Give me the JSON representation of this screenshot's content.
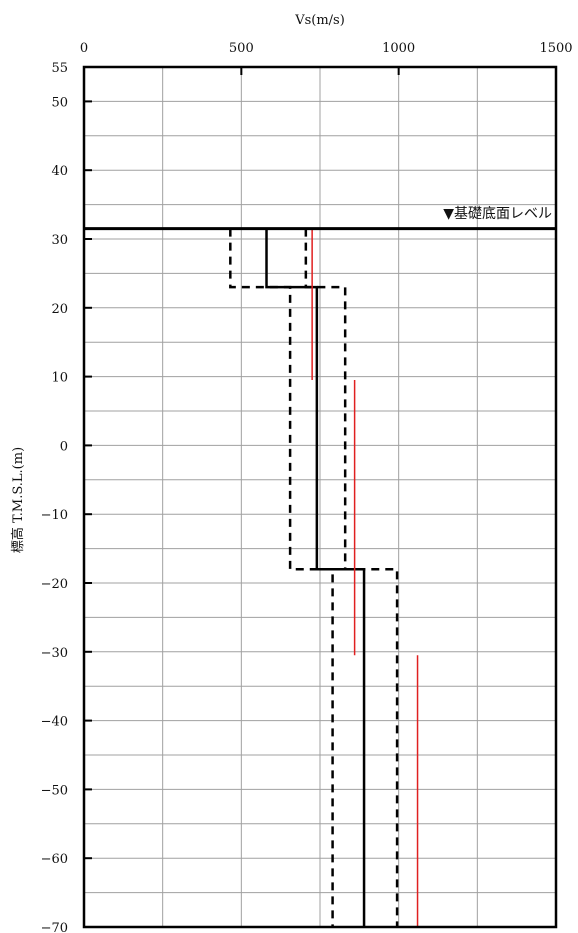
{
  "chart_data": {
    "type": "line",
    "xlabel": "Vs(m/s)",
    "ylabel": "標高 T.M.S.L.(m)",
    "xlim": [
      0,
      1500
    ],
    "ylim": [
      -70,
      55
    ],
    "x_ticks": [
      "0",
      "500",
      "1000",
      "1500"
    ],
    "x_tick_values": [
      0,
      500,
      1000,
      1500
    ],
    "y_ticks": [
      "55",
      "50",
      "40",
      "30",
      "20",
      "10",
      "0",
      "-10",
      "-20",
      "-30",
      "-40",
      "-50",
      "-60",
      "-70"
    ],
    "y_tick_values": [
      55,
      50,
      40,
      30,
      20,
      10,
      0,
      -10,
      -20,
      -30,
      -40,
      -50,
      -60,
      -70
    ],
    "x_grid": [
      250,
      500,
      750,
      1000,
      1250
    ],
    "y_grid": [
      -65,
      -60,
      -55,
      -50,
      -45,
      -40,
      -35,
      -30,
      -25,
      -20,
      -15,
      -10,
      -5,
      0,
      5,
      10,
      15,
      20,
      25,
      30,
      35,
      40,
      45,
      50
    ],
    "grid": true,
    "foundation_level": 31.5,
    "annotation": "▼基礎底面レベル",
    "series": [
      {
        "style": "solid-black",
        "points": [
          [
            580,
            31.5
          ],
          [
            580,
            23
          ],
          [
            740,
            23
          ],
          [
            740,
            -18
          ],
          [
            890,
            -18
          ],
          [
            890,
            -70
          ]
        ]
      },
      {
        "style": "dashed-black-left",
        "points": [
          [
            465,
            31.5
          ],
          [
            465,
            23
          ],
          [
            655,
            23
          ],
          [
            655,
            -18
          ],
          [
            790,
            -18
          ],
          [
            790,
            -70
          ]
        ]
      },
      {
        "style": "dashed-black-right",
        "points": [
          [
            705,
            31.5
          ],
          [
            705,
            23
          ],
          [
            830,
            23
          ],
          [
            830,
            -18
          ],
          [
            995,
            -18
          ],
          [
            995,
            -70
          ]
        ]
      },
      {
        "style": "red",
        "segments": [
          [
            [
              725,
              31.5
            ],
            [
              725,
              9.5
            ]
          ],
          [
            [
              860,
              9.5
            ],
            [
              860,
              -30.5
            ]
          ],
          [
            [
              1060,
              -30.5
            ],
            [
              1060,
              -70
            ]
          ]
        ]
      }
    ],
    "colors": {
      "red": "#e02020",
      "black": "#000000",
      "grid": "#a0a0a0"
    }
  }
}
